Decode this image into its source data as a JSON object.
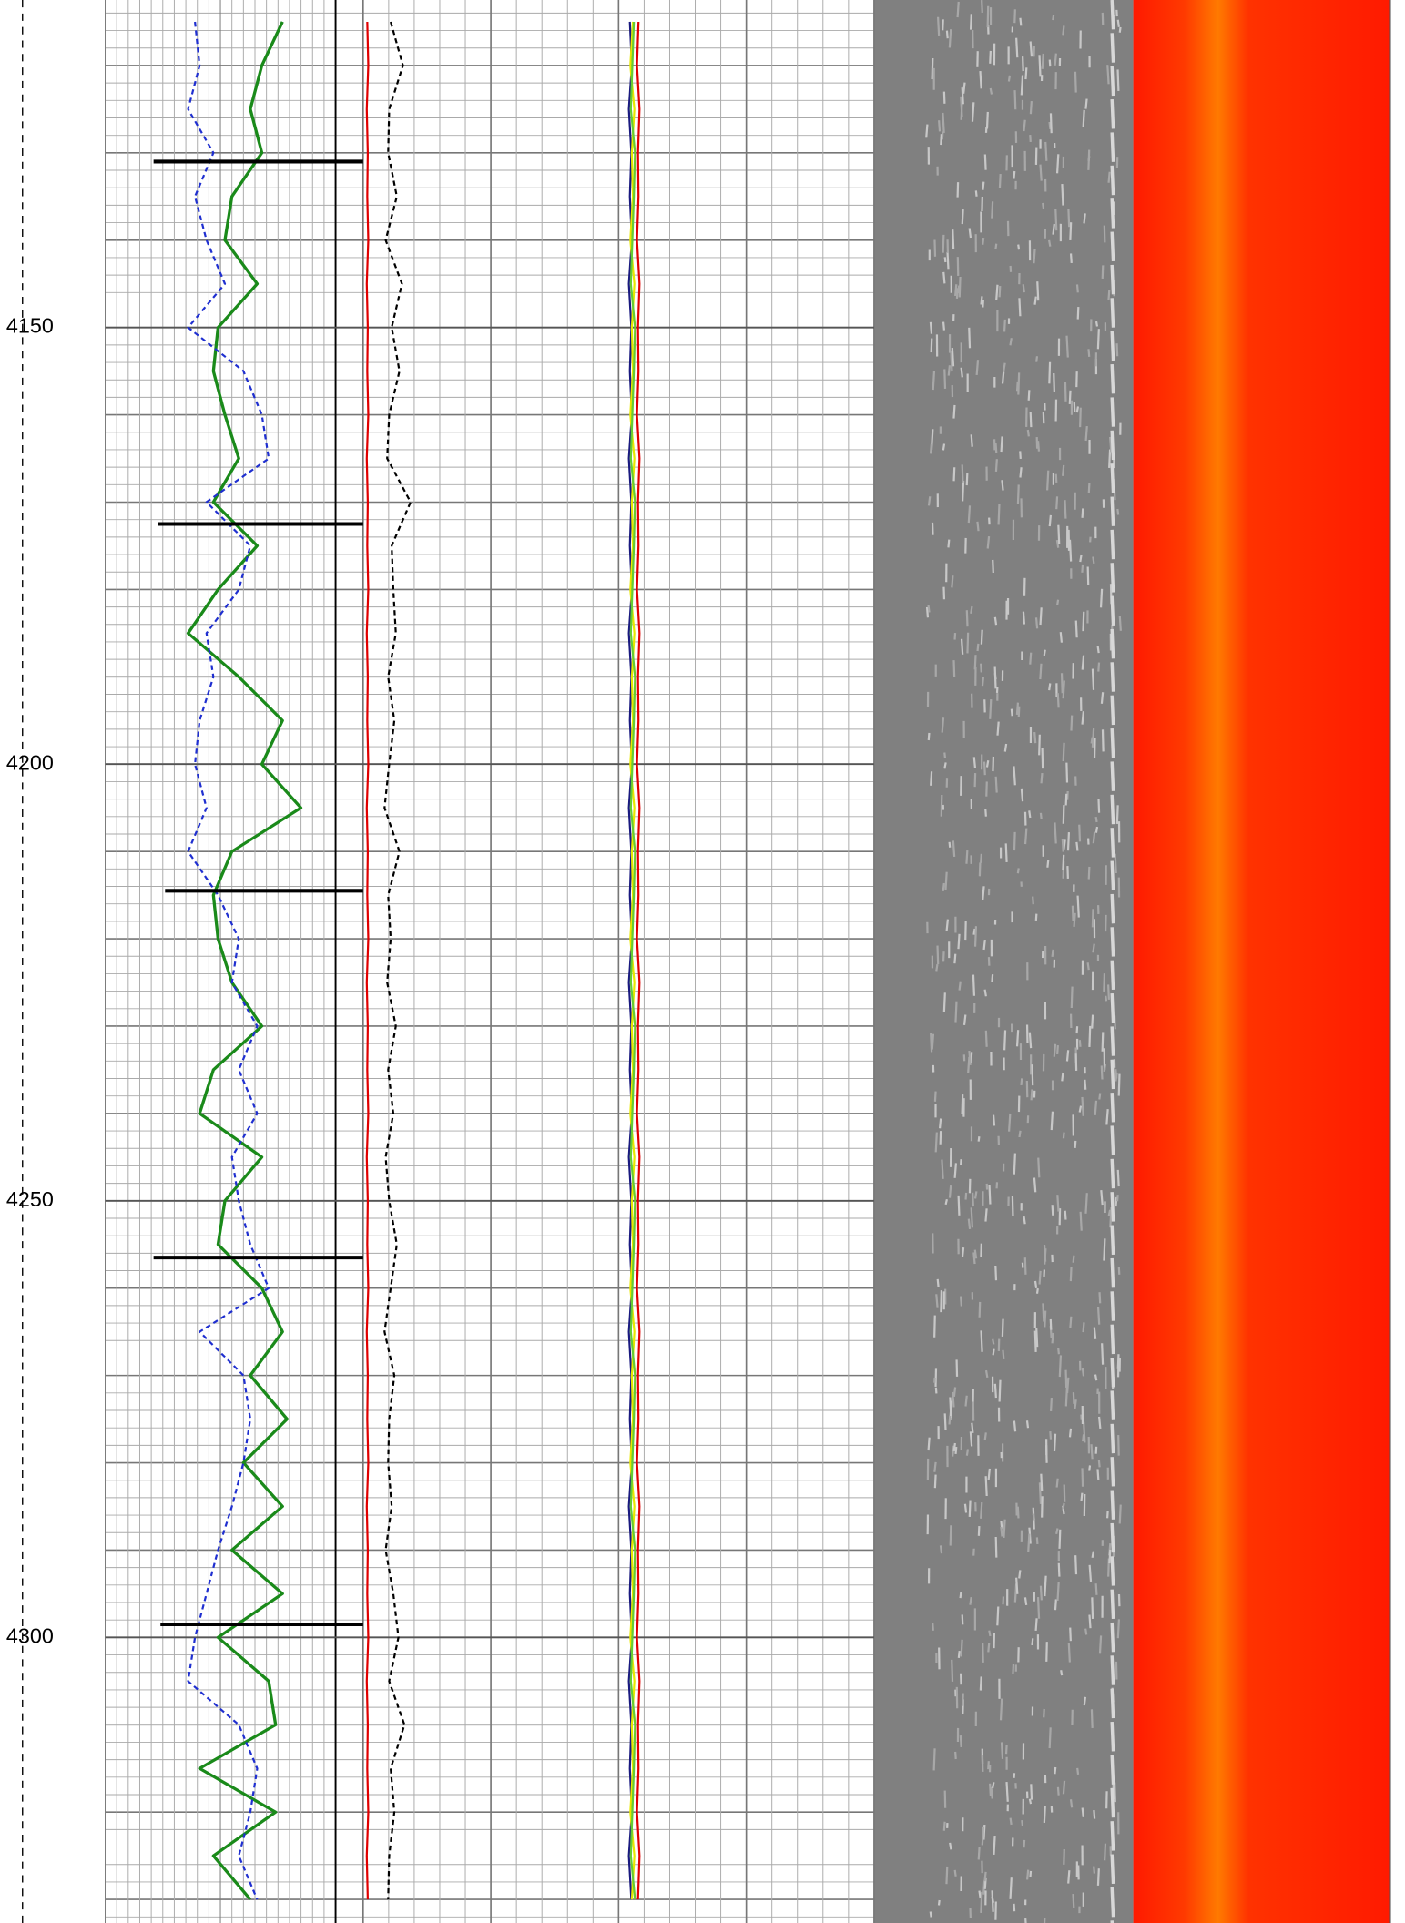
{
  "chart_data": {
    "type": "log",
    "x": [
      4115,
      4120,
      4125,
      4130,
      4135,
      4140,
      4145,
      4150,
      4155,
      4160,
      4165,
      4170,
      4175,
      4180,
      4185,
      4190,
      4195,
      4200,
      4205,
      4210,
      4215,
      4220,
      4225,
      4230,
      4235,
      4240,
      4245,
      4250,
      4255,
      4260,
      4265,
      4270,
      4275,
      4280,
      4285,
      4290,
      4295,
      4300,
      4305,
      4310,
      4315,
      4320,
      4325,
      4330
    ],
    "xlim": [
      4112.5,
      4332.7
    ],
    "xticks": [
      4150,
      4200,
      4250,
      4300
    ],
    "grid": true,
    "tracks": [
      {
        "ylim": [
          0,
          112
        ]
      },
      {
        "ylim": [
          0,
          100
        ]
      }
    ],
    "series": [
      {
        "track": 0,
        "color": "#1a8a1a",
        "dash": false,
        "values": [
          77,
          68,
          63,
          68,
          55,
          52,
          66,
          49,
          47,
          52,
          58,
          47,
          66,
          49,
          36,
          58,
          77,
          68,
          85,
          55,
          47,
          49,
          55,
          68,
          47,
          41,
          68,
          52,
          49,
          68,
          77,
          63,
          79,
          60,
          77,
          55,
          77,
          49,
          71,
          74,
          41,
          74,
          47,
          63
        ]
      },
      {
        "track": 0,
        "color": "#1f2fd0",
        "dash": true,
        "values": [
          39,
          41,
          36,
          47,
          39,
          44,
          52,
          36,
          60,
          68,
          71,
          44,
          63,
          58,
          44,
          47,
          41,
          39,
          44,
          36,
          49,
          58,
          55,
          66,
          58,
          66,
          55,
          58,
          63,
          71,
          41,
          60,
          63,
          60,
          55,
          49,
          44,
          39,
          36,
          58,
          66,
          63,
          58,
          66
        ]
      },
      {
        "track": 1,
        "color": "#e00000",
        "dash": false,
        "values": [
          0.8,
          1,
          0.7,
          0.9,
          0.8,
          1,
          0.7,
          0.9,
          0.8,
          1,
          0.7,
          0.9,
          0.8,
          1,
          0.7,
          0.9,
          0.8,
          1,
          0.7,
          0.9,
          0.8,
          1,
          0.7,
          0.9,
          0.8,
          1,
          0.7,
          0.9,
          0.8,
          1,
          0.7,
          0.9,
          0.8,
          1,
          0.7,
          0.9,
          0.8,
          1,
          0.7,
          0.9,
          0.8,
          1,
          0.7,
          0.9
        ]
      },
      {
        "track": 1,
        "color": "#000000",
        "dash": true,
        "values": [
          5.4,
          7.8,
          5.1,
          4.9,
          6.6,
          4.4,
          7.6,
          5.6,
          7.1,
          5.1,
          4.7,
          9.3,
          5.6,
          5.9,
          6.4,
          4.9,
          6.1,
          5.1,
          4.2,
          7.1,
          4.9,
          5.4,
          4.7,
          6.4,
          4.9,
          5.9,
          4.4,
          5.1,
          6.6,
          5.4,
          4.2,
          6.1,
          5.1,
          4.9,
          5.6,
          4.4,
          5.9,
          6.9,
          5.1,
          8.1,
          5.4,
          6.1,
          5.1,
          4.9
        ]
      },
      {
        "track": 1,
        "color": "#1a1a80",
        "dash": false,
        "values": [
          52.2,
          52.6,
          52,
          52.5,
          52.2,
          52.6,
          52,
          52.5,
          52.2,
          52.6,
          52,
          52.5,
          52.2,
          52.6,
          52,
          52.5,
          52.2,
          52.6,
          52,
          52.5,
          52.2,
          52.6,
          52,
          52.5,
          52.2,
          52.6,
          52,
          52.5,
          52.2,
          52.6,
          52,
          52.5,
          52.2,
          52.6,
          52,
          52.5,
          52.2,
          52.6,
          52,
          52.5,
          52.2,
          52.6,
          52,
          52.5
        ]
      },
      {
        "track": 1,
        "color": "#e8e800",
        "dash": false,
        "values": [
          52.8,
          52.3,
          53.1,
          52.6,
          52.8,
          52.3,
          53.1,
          52.6,
          52.8,
          52.3,
          53.1,
          52.6,
          52.8,
          52.3,
          53.1,
          52.6,
          52.8,
          52.3,
          53.1,
          52.6,
          52.8,
          52.3,
          53.1,
          52.6,
          52.8,
          52.3,
          53.1,
          52.6,
          52.8,
          52.3,
          53.1,
          52.6,
          52.8,
          52.3,
          53.1,
          52.6,
          52.8,
          52.3,
          53.1,
          52.6,
          52.8,
          52.3,
          53.1,
          52.6
        ]
      },
      {
        "track": 1,
        "color": "#66cc33",
        "dash": false,
        "values": [
          53,
          52.7,
          52.4,
          53.2,
          53,
          52.7,
          52.4,
          53.2,
          53,
          52.7,
          52.4,
          53.2,
          53,
          52.7,
          52.4,
          53.2,
          53,
          52.7,
          52.4,
          53.2,
          53,
          52.7,
          52.4,
          53.2,
          53,
          52.7,
          52.4,
          53.2,
          53,
          52.7,
          52.4,
          53.2,
          53,
          52.7,
          52.4,
          53.2,
          53,
          52.7,
          52.4,
          53.2,
          53,
          52.7,
          52.4,
          53.2
        ]
      },
      {
        "track": 1,
        "color": "#e00000",
        "dash": false,
        "values": [
          53.9,
          53.6,
          54.1,
          53.8,
          53.9,
          53.6,
          54.1,
          53.8,
          53.9,
          53.6,
          54.1,
          53.8,
          53.9,
          53.6,
          54.1,
          53.8,
          53.9,
          53.6,
          54.1,
          53.8,
          53.9,
          53.6,
          54.1,
          53.8,
          53.9,
          53.6,
          54.1,
          53.8,
          53.9,
          53.6,
          54.1,
          53.8,
          53.9,
          53.6,
          54.1,
          53.8,
          53.9,
          53.6,
          54.1,
          53.8,
          53.9,
          53.6,
          54.1,
          53.8
        ]
      }
    ],
    "markers": {
      "x": [
        4131,
        4172.5,
        4214.5,
        4256.5,
        4298.5
      ],
      "values": [
        21,
        23,
        26,
        21,
        24
      ],
      "color": "#000000"
    }
  }
}
